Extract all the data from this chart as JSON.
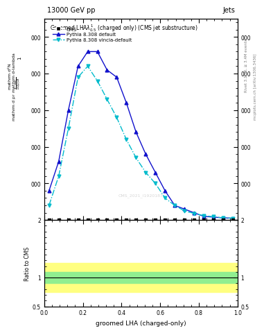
{
  "title_top": "13000 GeV pp",
  "title_right": "Jets",
  "plot_title": "Groomed LHAλ$^{1}_{0.5}$ (charged only) (CMS jet substructure)",
  "ylabel_parts": [
    "mathrm d$^2$N",
    "mathrm d p$_\\mathrm{T}$ mathrm d-lambda",
    "1"
  ],
  "ylabel_text": "$\\frac{1}{\\mathrm{d}N}\\frac{\\mathrm{d}N}{\\mathrm{d}p_\\mathrm{T}\\,\\mathrm{d}\\lambda}$",
  "xlabel": "groomed LHA (charged-only)",
  "ratio_ylabel": "Ratio to CMS",
  "right_label1": "Rivet 3.1.10, ≥ 3.4M events",
  "right_label2": "mcplots.cern.ch [arXiv:1306.3436]",
  "watermark": "CMS_2021_I1920187",
  "cms_x": [
    0.025,
    0.075,
    0.125,
    0.175,
    0.225,
    0.275,
    0.325,
    0.375,
    0.425,
    0.475,
    0.525,
    0.575,
    0.625,
    0.675,
    0.725,
    0.775,
    0.825,
    0.875,
    0.925,
    0.975
  ],
  "cms_y": [
    0,
    0,
    0,
    0,
    0,
    0,
    0,
    0,
    0,
    0,
    0,
    0,
    0,
    0,
    0,
    0,
    0,
    0,
    0,
    0
  ],
  "pythia_default_x": [
    0.025,
    0.075,
    0.125,
    0.175,
    0.225,
    0.275,
    0.325,
    0.375,
    0.425,
    0.475,
    0.525,
    0.575,
    0.625,
    0.675,
    0.725,
    0.775,
    0.825,
    0.875,
    0.925,
    0.975
  ],
  "pythia_default_y": [
    800,
    1600,
    3000,
    4200,
    4600,
    4600,
    4100,
    3900,
    3200,
    2400,
    1800,
    1300,
    800,
    400,
    300,
    200,
    100,
    80,
    60,
    50
  ],
  "pythia_vincia_x": [
    0.025,
    0.075,
    0.125,
    0.175,
    0.225,
    0.275,
    0.325,
    0.375,
    0.425,
    0.475,
    0.525,
    0.575,
    0.625,
    0.675,
    0.725,
    0.775,
    0.825,
    0.875,
    0.925,
    0.975
  ],
  "pythia_vincia_y": [
    400,
    1200,
    2500,
    3900,
    4200,
    3800,
    3300,
    2800,
    2200,
    1700,
    1300,
    1000,
    600,
    400,
    250,
    180,
    120,
    90,
    60,
    50
  ],
  "ylim": [
    0,
    5500
  ],
  "yticks": [
    0,
    1000,
    2000,
    3000,
    4000,
    5000
  ],
  "ratio_ylim": [
    0.5,
    2.0
  ],
  "ratio_yticks": [
    0.5,
    1.0,
    2.0
  ],
  "color_default": "#1111cc",
  "color_vincia": "#00bbcc",
  "color_cms": "black",
  "band_green": "#90ee90",
  "band_yellow": "#ffff80",
  "ratio_green_band": [
    0.9,
    1.1
  ],
  "ratio_yellow_band": [
    0.75,
    1.25
  ]
}
